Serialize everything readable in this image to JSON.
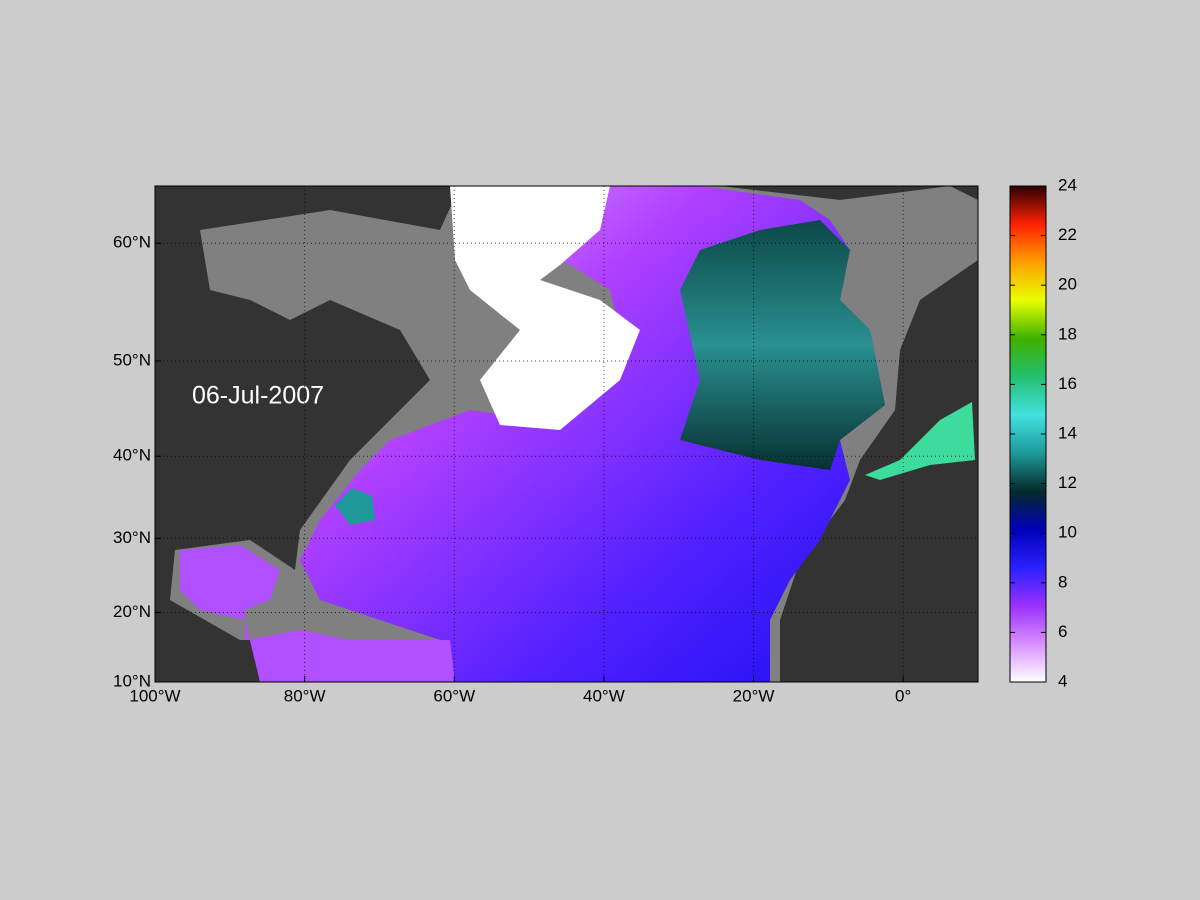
{
  "map": {
    "date_label": "06-Jul-2007",
    "xlim": [
      -100,
      10
    ],
    "ylim": [
      10,
      64
    ],
    "xticks": [
      {
        "value": -100,
        "label": "100°W"
      },
      {
        "value": -80,
        "label": "80°W"
      },
      {
        "value": -60,
        "label": "60°W"
      },
      {
        "value": -40,
        "label": "40°W"
      },
      {
        "value": -20,
        "label": "20°W"
      },
      {
        "value": 0,
        "label": "0°"
      }
    ],
    "yticks": [
      {
        "value": 10,
        "label": "10°N"
      },
      {
        "value": 20,
        "label": "20°N"
      },
      {
        "value": 30,
        "label": "30°N"
      },
      {
        "value": 40,
        "label": "40°N"
      },
      {
        "value": 50,
        "label": "50°N"
      },
      {
        "value": 60,
        "label": "60°N"
      }
    ],
    "grid": true,
    "colorbar": {
      "lim": [
        4,
        24
      ],
      "ticks": [
        4,
        6,
        8,
        10,
        12,
        14,
        16,
        18,
        20,
        22,
        24
      ],
      "colormap": [
        "#ffffff",
        "#d890ff",
        "#9a30ff",
        "#2a20ff",
        "#0000b8",
        "#042a2a",
        "#1e9a9a",
        "#44e0e0",
        "#22c070",
        "#40b000",
        "#e8ff00",
        "#ffa000",
        "#ff2000",
        "#2a0000"
      ]
    }
  }
}
